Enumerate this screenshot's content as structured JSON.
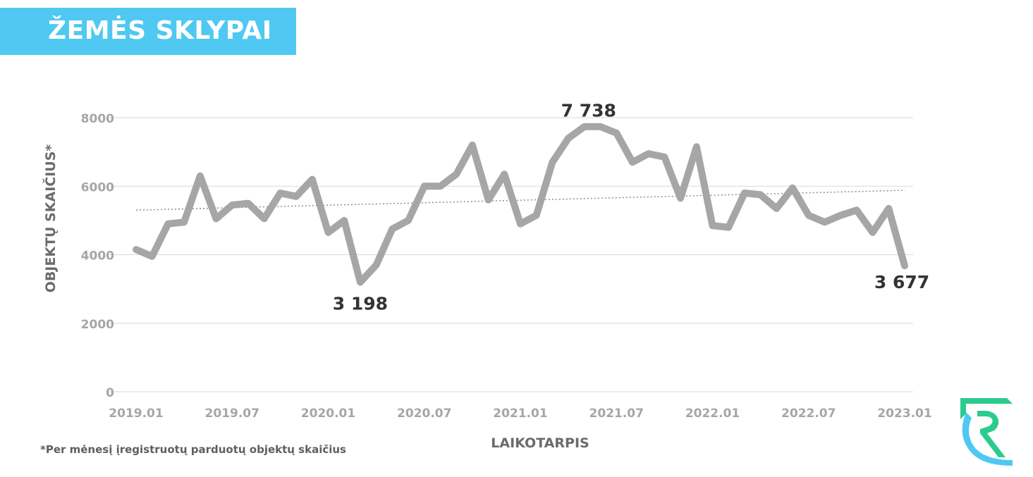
{
  "header": {
    "title": "ŽEMĖS SKLYPAI"
  },
  "footnote": "*Per mėnesį įregistruotų parduotų objektų skaičius",
  "colors": {
    "accent": "#4fc8f2",
    "series": "#a6a6a6",
    "text_gray": "#a6a6a6",
    "annotation": "#333333",
    "logo_green": "#2bcb8d"
  },
  "logo": {
    "icon": "rc-logo-icon"
  },
  "chart_data": {
    "type": "line",
    "title": "",
    "xlabel": "LAIKOTARPIS",
    "ylabel": "OBJEKTŲ SKAIČIUS*",
    "ylim": [
      0,
      8000
    ],
    "yticks": [
      "0",
      "2000",
      "4000",
      "6000",
      "8000"
    ],
    "xticks": [
      "2019.01",
      "2019.07",
      "2020.01",
      "2020.07",
      "2021.01",
      "2021.07",
      "2022.01",
      "2022.07",
      "2023.01"
    ],
    "grid": true,
    "trendline": {
      "style": "dotted",
      "start": 5300,
      "end": 5880
    },
    "x": [
      "2019.01",
      "2019.02",
      "2019.03",
      "2019.04",
      "2019.05",
      "2019.06",
      "2019.07",
      "2019.08",
      "2019.09",
      "2019.10",
      "2019.11",
      "2019.12",
      "2020.01",
      "2020.02",
      "2020.03",
      "2020.04",
      "2020.05",
      "2020.06",
      "2020.07",
      "2020.08",
      "2020.09",
      "2020.10",
      "2020.11",
      "2020.12",
      "2021.01",
      "2021.02",
      "2021.03",
      "2021.04",
      "2021.05",
      "2021.06",
      "2021.07",
      "2021.08",
      "2021.09",
      "2021.10",
      "2021.11",
      "2021.12",
      "2022.01",
      "2022.02",
      "2022.03",
      "2022.04",
      "2022.05",
      "2022.06",
      "2022.07",
      "2022.08",
      "2022.09",
      "2022.10",
      "2022.11",
      "2022.12",
      "2023.01"
    ],
    "series": [
      {
        "name": "",
        "values": [
          4150,
          3950,
          4900,
          4950,
          6300,
          5050,
          5450,
          5500,
          5050,
          5800,
          5700,
          6200,
          4650,
          5000,
          3198,
          3700,
          4750,
          5000,
          6000,
          6000,
          6350,
          7200,
          5600,
          6350,
          4900,
          5150,
          6700,
          7400,
          7738,
          7738,
          7550,
          6700,
          6950,
          6850,
          5650,
          7150,
          4850,
          4800,
          5800,
          5750,
          5350,
          5950,
          5150,
          4950,
          5150,
          5300,
          4650,
          5350,
          3677
        ]
      }
    ],
    "annotations": [
      {
        "label": "3 198",
        "x": "2020.03"
      },
      {
        "label": "7 738",
        "x": "2021.05"
      },
      {
        "label": "3 677",
        "x": "2023.01"
      }
    ]
  }
}
